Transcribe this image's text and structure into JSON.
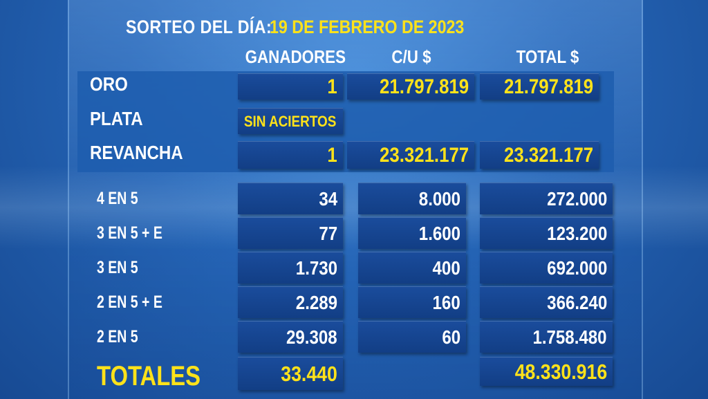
{
  "header": {
    "label": "SORTEO DEL DÍA:",
    "date": "19 DE FEBRERO DE 2023"
  },
  "columns": {
    "winners": "GANADORES",
    "per_unit": "C/U $",
    "total": "TOTAL $"
  },
  "main_prizes": [
    {
      "label": "ORO",
      "winners": "1",
      "per_unit": "21.797.819",
      "total": "21.797.819"
    },
    {
      "label": "PLATA",
      "no_winners": "SIN ACIERTOS"
    },
    {
      "label": "REVANCHA",
      "winners": "1",
      "per_unit": "23.321.177",
      "total": "23.321.177"
    }
  ],
  "secondary_prizes": [
    {
      "label": "4 EN 5",
      "winners": "34",
      "per_unit": "8.000",
      "total": "272.000"
    },
    {
      "label": "3 EN 5 + E",
      "winners": "77",
      "per_unit": "1.600",
      "total": "123.200"
    },
    {
      "label": "3 EN 5",
      "winners": "1.730",
      "per_unit": "400",
      "total": "692.000"
    },
    {
      "label": "2 EN 5 + E",
      "winners": "2.289",
      "per_unit": "160",
      "total": "366.240"
    },
    {
      "label": "2 EN 5",
      "winners": "29.308",
      "per_unit": "60",
      "total": "1.758.480"
    }
  ],
  "totals": {
    "label": "TOTALES",
    "winners": "33.440",
    "total": "48.330.916"
  },
  "colors": {
    "accent": "#ffe21a",
    "background": "#2463b4",
    "cell": "#153f88"
  }
}
